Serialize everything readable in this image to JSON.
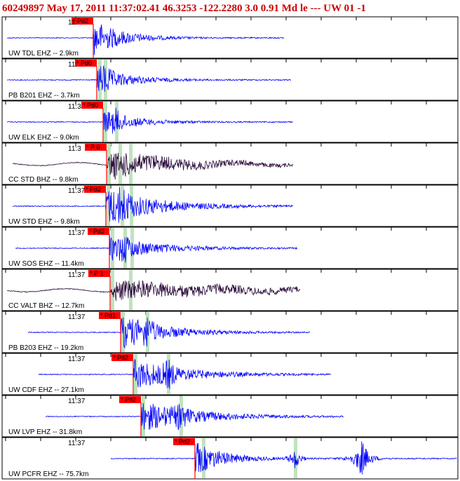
{
  "header": {
    "title": "60249897 May 17, 2011 11:37:02.41   46.3253 -122.2280  3.0 0.91 Md le --- UW 01  -1"
  },
  "colors": {
    "header_text": "#cc0000",
    "trace_short_period": "#0000ff",
    "trace_broadband": "#2a0a3a",
    "pick_flag": "#ff0000",
    "phase_band": "#bfe3bf",
    "panel_border": "#000000"
  },
  "panels": [
    {
      "label": "UW TDL EHZ -- 2.9km",
      "tick": "11:",
      "pick": "Pd2",
      "kind": "sp"
    },
    {
      "label": "PB B201 EHZ -- 3.7km",
      "tick": "11:",
      "pick": "Pd0",
      "kind": "sp"
    },
    {
      "label": "UW ELK EHZ -- 9.0km",
      "tick": "11:3",
      "pick": "Pd0",
      "kind": "sp"
    },
    {
      "label": "CC STD BHZ -- 9.8km",
      "tick": "11:3",
      "pick": "P 0",
      "kind": "bb"
    },
    {
      "label": "UW STD EHZ -- 9.8km",
      "tick": "11:37",
      "pick": "Pd2",
      "kind": "sp"
    },
    {
      "label": "UW SOS EHZ -- 11.4km",
      "tick": "11:37",
      "pick": "Pd2",
      "kind": "sp"
    },
    {
      "label": "CC VALT BHZ -- 12.7km",
      "tick": "11:37",
      "pick": "P 1",
      "kind": "bb"
    },
    {
      "label": "PB B203 EHZ -- 19.2km",
      "tick": "11:37",
      "pick": "Pd1",
      "kind": "sp"
    },
    {
      "label": "UW CDF EHZ -- 27.1km",
      "tick": "11:37",
      "pick": "Pd2",
      "kind": "sp"
    },
    {
      "label": "UW LVP EHZ -- 31.8km",
      "tick": "11:37",
      "pick": "Pd2",
      "kind": "sp"
    },
    {
      "label": "UW PCFR EHZ -- 75.7km",
      "tick": "11:37",
      "pick": "Pd2",
      "kind": "sp"
    }
  ]
}
